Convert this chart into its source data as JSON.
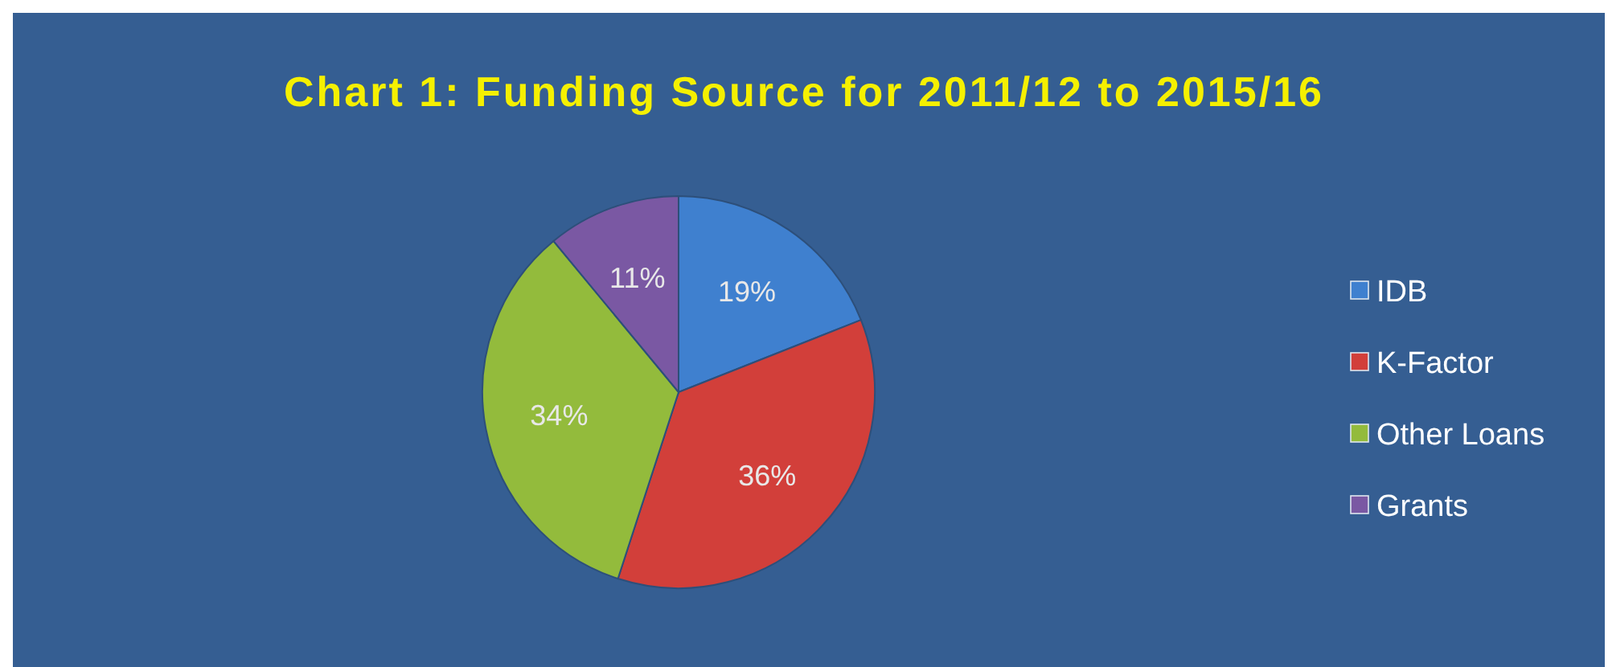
{
  "chart_data": {
    "type": "pie",
    "title": "Chart 1: Funding Source for 2011/12 to 2015/16",
    "categories": [
      "IDB",
      "K-Factor",
      "Other Loans",
      "Grants"
    ],
    "values": [
      19,
      36,
      34,
      11
    ],
    "value_labels": [
      "19%",
      "36%",
      "34%",
      "11%"
    ],
    "colors": [
      "#3f80cf",
      "#d23f3a",
      "#93bb3c",
      "#7a58a3"
    ],
    "legend": "right"
  }
}
